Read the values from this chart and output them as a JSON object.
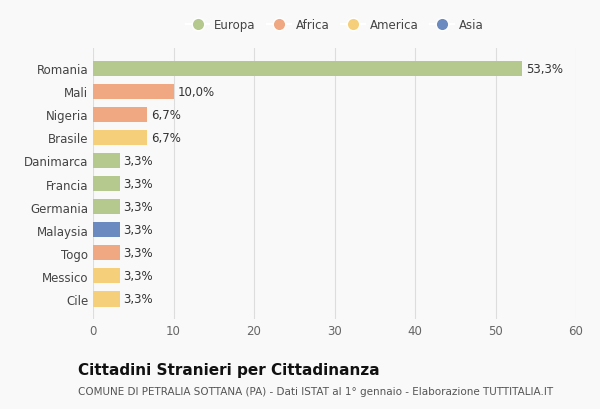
{
  "categories": [
    "Romania",
    "Mali",
    "Nigeria",
    "Brasile",
    "Danimarca",
    "Francia",
    "Germania",
    "Malaysia",
    "Togo",
    "Messico",
    "Cile"
  ],
  "values": [
    53.3,
    10.0,
    6.7,
    6.7,
    3.3,
    3.3,
    3.3,
    3.3,
    3.3,
    3.3,
    3.3
  ],
  "labels": [
    "53,3%",
    "10,0%",
    "6,7%",
    "6,7%",
    "3,3%",
    "3,3%",
    "3,3%",
    "3,3%",
    "3,3%",
    "3,3%",
    "3,3%"
  ],
  "bar_colors": [
    "#b5c98e",
    "#f0a882",
    "#f0a882",
    "#f5cf7a",
    "#b5c98e",
    "#b5c98e",
    "#b5c98e",
    "#6b8abf",
    "#f0a882",
    "#f5cf7a",
    "#f5cf7a"
  ],
  "legend_labels": [
    "Europa",
    "Africa",
    "America",
    "Asia"
  ],
  "legend_colors": [
    "#b5c98e",
    "#f0a882",
    "#f5cf7a",
    "#6b8abf"
  ],
  "xlim": [
    0,
    60
  ],
  "xticks": [
    0,
    10,
    20,
    30,
    40,
    50,
    60
  ],
  "title": "Cittadini Stranieri per Cittadinanza",
  "subtitle": "COMUNE DI PETRALIA SOTTANA (PA) - Dati ISTAT al 1° gennaio - Elaborazione TUTTITALIA.IT",
  "background_color": "#f9f9f9",
  "grid_color": "#dddddd",
  "bar_height": 0.65,
  "title_fontsize": 11,
  "subtitle_fontsize": 7.5,
  "tick_fontsize": 8.5,
  "label_fontsize": 8.5,
  "legend_fontsize": 8.5
}
